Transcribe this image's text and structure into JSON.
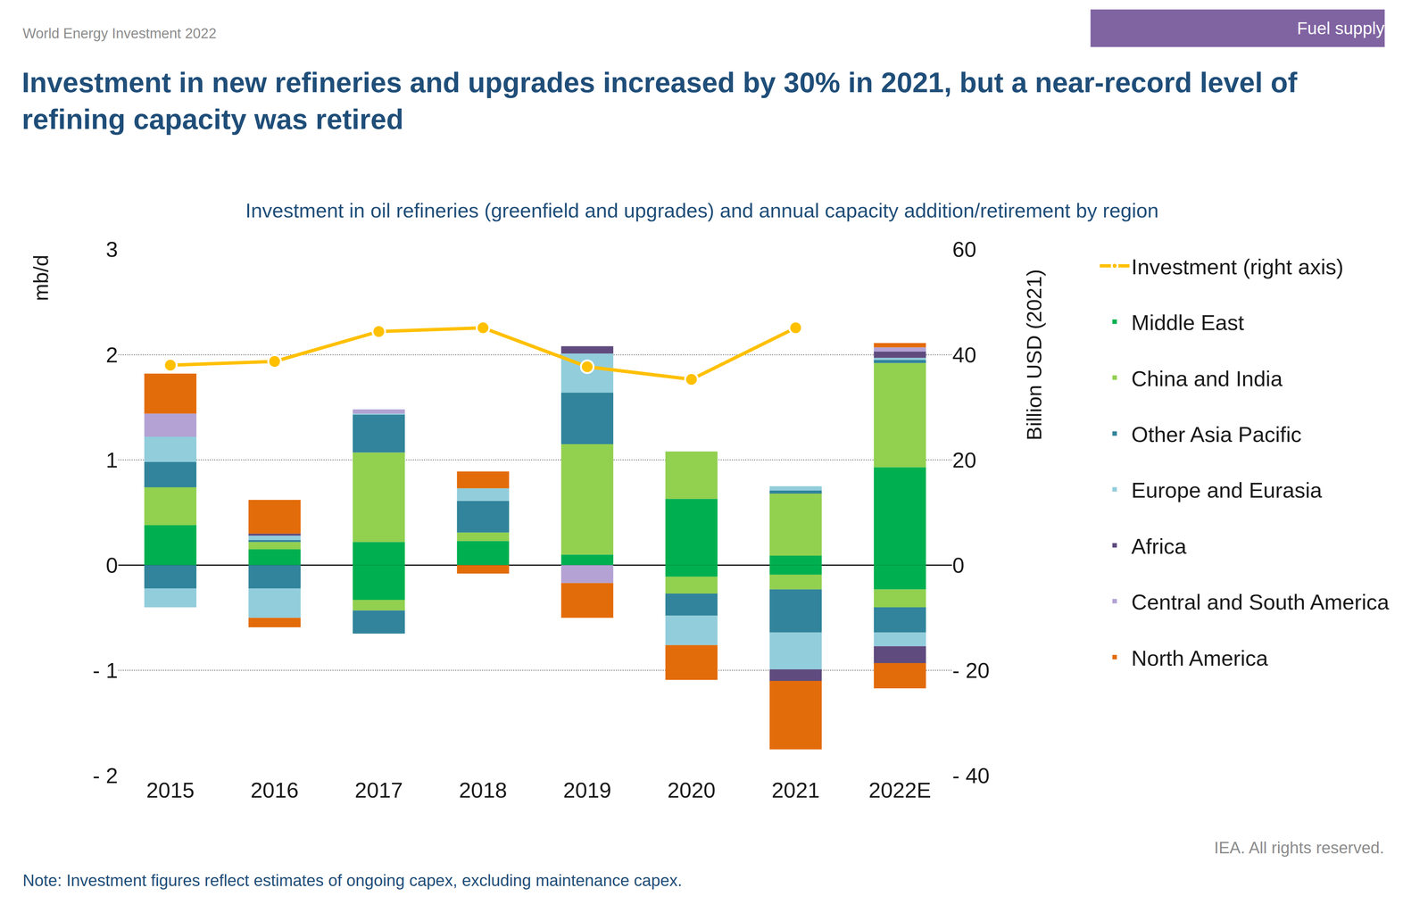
{
  "chart_data": {
    "type": "bar",
    "header": "World Energy Investment 2022",
    "section": "Fuel supply",
    "title": "Investment in new refineries and upgrades increased by 30% in 2021, but a near-record level of refining capacity was retired",
    "subtitle": "Investment in oil refineries (greenfield and upgrades) and annual capacity addition/retirement by region",
    "y_label": "mb/d",
    "y2_label": "Billion USD (2021)",
    "note": "Note: Investment figures reflect estimates of ongoing capex, excluding maintenance capex.",
    "source": "IEA. All rights reserved.",
    "stacked": true,
    "grid": true,
    "legend": "right",
    "categories": [
      "2015",
      "2016",
      "2017",
      "2018",
      "2019",
      "2020",
      "2021",
      "2022E"
    ],
    "ylim": [
      -2,
      3
    ],
    "yticks": [
      {
        "value": -2,
        "label": "- 2"
      },
      {
        "value": -1,
        "label": "- 1"
      },
      0,
      1,
      2,
      3
    ],
    "y2lim": [
      -40,
      60
    ],
    "y2ticks": [
      {
        "value": -40,
        "label": "- 40"
      },
      {
        "value": -20,
        "label": "- 20"
      },
      0,
      20,
      40,
      60
    ],
    "series": [
      {
        "name": "North America",
        "type": "bar",
        "color": "#E36C0A",
        "values": [
          0.38,
          0.32,
          0,
          0.16,
          0,
          0,
          0,
          0.04
        ],
        "retirements": [
          0,
          -0.09,
          0,
          -0.08,
          -0.33,
          -0.33,
          -0.65,
          -0.24
        ]
      },
      {
        "name": "Central and South America",
        "type": "bar",
        "color": "#B3A2D3",
        "values": [
          0.22,
          0,
          0.04,
          0,
          0,
          0,
          0,
          0.04
        ],
        "retirements": [
          0,
          0,
          0,
          0,
          -0.17,
          0,
          0,
          0
        ]
      },
      {
        "name": "Africa",
        "type": "bar",
        "color": "#5F4B7E",
        "values": [
          0,
          0.02,
          0,
          0,
          0.07,
          0,
          0,
          0.06
        ],
        "retirements": [
          0,
          0,
          0,
          0,
          0,
          0,
          -0.11,
          -0.16
        ]
      },
      {
        "name": "Europe and Eurasia",
        "type": "bar",
        "color": "#92CDDC",
        "values": [
          0.24,
          0.04,
          0.01,
          0.12,
          0.37,
          0,
          0.04,
          0.02
        ],
        "retirements": [
          -0.18,
          -0.28,
          0,
          0,
          0,
          -0.28,
          -0.35,
          -0.13
        ]
      },
      {
        "name": "Other Asia Pacific",
        "type": "bar",
        "color": "#31849B",
        "values": [
          0.24,
          0.02,
          0.36,
          0.3,
          0.49,
          0,
          0.03,
          0.03
        ],
        "retirements": [
          -0.22,
          -0.22,
          -0.22,
          0,
          0,
          -0.21,
          -0.41,
          -0.24
        ]
      },
      {
        "name": "China and India",
        "type": "bar",
        "color": "#92D050",
        "values": [
          0.36,
          0.07,
          0.85,
          0.08,
          1.05,
          0.45,
          0.59,
          0.99
        ],
        "retirements": [
          0,
          0,
          -0.1,
          0,
          0,
          -0.16,
          -0.14,
          -0.17
        ]
      },
      {
        "name": "Middle East",
        "type": "bar",
        "color": "#00B050",
        "values": [
          0.38,
          0.15,
          0.22,
          0.23,
          0.1,
          0.63,
          0.09,
          0.93
        ],
        "retirements": [
          0,
          0,
          -0.33,
          0,
          0,
          -0.11,
          -0.09,
          -0.23
        ]
      },
      {
        "name": "Investment (right axis)",
        "type": "line",
        "axis": "y2",
        "color": "#FFC000",
        "marker": "circle",
        "line_style": "solid",
        "values": [
          38.0,
          38.7,
          44.4,
          45.1,
          37.7,
          35.3,
          45.1,
          null
        ]
      }
    ]
  }
}
